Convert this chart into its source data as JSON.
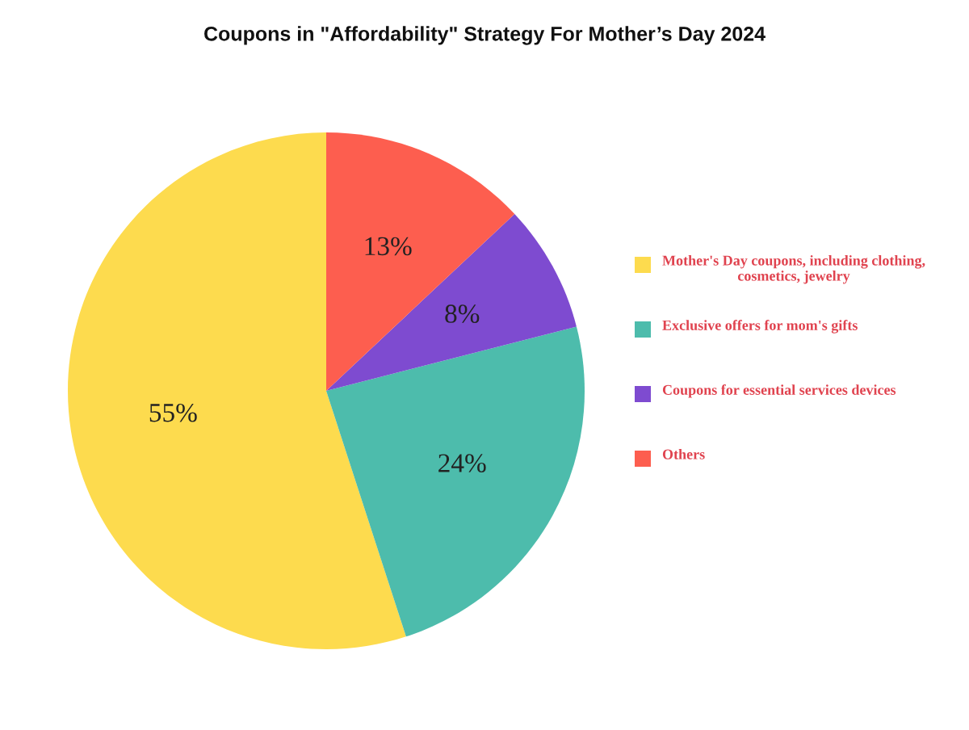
{
  "chart_data": {
    "type": "pie",
    "title": "Coupons in \"Affordability\" Strategy For Mother’s Day 2024",
    "categories": [
      "Mother's Day coupons, including clothing, cosmetics, jewelry",
      "Exclusive offers for mom's gifts",
      "Coupons for essential services devices",
      "Others"
    ],
    "values": [
      55,
      24,
      8,
      13
    ],
    "colors": [
      "#fddb4e",
      "#4dbcac",
      "#7e4bd0",
      "#fd5e4f"
    ],
    "value_labels": [
      "55%",
      "24%",
      "8%",
      "13%"
    ],
    "legend": "right"
  }
}
